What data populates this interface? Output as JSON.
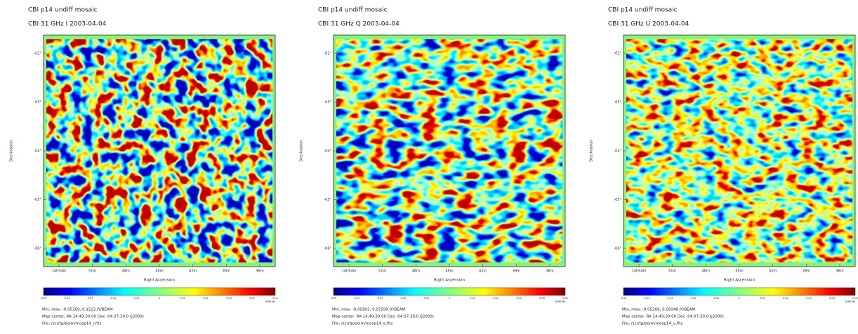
{
  "panels": [
    {
      "title": "CBI p14 undiff mosaic",
      "subtitle": "CBI 31 GHz I 2003-04-04",
      "ylabel": "Declination",
      "xlabel": "Right Ascension",
      "yticks": [
        "-02°",
        "-03°",
        "-04°",
        "-05°",
        "-06°"
      ],
      "xticks": [
        "14h54m",
        "51m",
        "48m",
        "45m",
        "42m",
        "39m",
        "36m"
      ],
      "colorbar_ticks": [
        "-0.05",
        "-0.04",
        "-0.03",
        "-0.02",
        "-0.01",
        "0",
        "0.01",
        "0.02",
        "0.03",
        "0.04",
        "0.05"
      ],
      "colorbar_unit": "JY/BEAM",
      "footer": [
        "Min, max: -0.05269, 0.1513 JY/BEAM",
        "Map center: RA 14:49:30.00 Dec -04:07:30.0 (J2000)",
        "File: /scr/tp/polm/mosp14_i.fits"
      ]
    },
    {
      "title": "CBI p14 undiff mosaic",
      "subtitle": "CBI 31 GHz Q 2003-04-04",
      "ylabel": "Declination",
      "xlabel": "Right Ascension",
      "yticks": [
        "-02°",
        "-03°",
        "-04°",
        "-05°",
        "-06°"
      ],
      "xticks": [
        "14h54m",
        "51m",
        "48m",
        "45m",
        "42m",
        "39m",
        "36m"
      ],
      "colorbar_ticks": [
        "-0.05",
        "-0.04",
        "-0.03",
        "-0.02",
        "-0.01",
        "0",
        "0.01",
        "0.02",
        "0.03",
        "0.04",
        "0.05"
      ],
      "colorbar_unit": "JY/BEAM",
      "footer": [
        "Min, max: -0.05802, 0.07599 JY/BEAM",
        "Map center: RA 14:49:30.00 Dec -04:07:30.0 (J2000)",
        "File: /scr/tp/polm/mosp14_q.fits"
      ]
    },
    {
      "title": "CBI p14 undiff mosaic",
      "subtitle": "CBI 31 GHz U 2003-04-04",
      "ylabel": "Declination",
      "xlabel": "Right Ascension",
      "yticks": [
        "-02°",
        "-03°",
        "-04°",
        "-05°",
        "-06°"
      ],
      "xticks": [
        "14h54m",
        "51m",
        "48m",
        "45m",
        "42m",
        "39m",
        "36m"
      ],
      "colorbar_ticks": [
        "-0.05",
        "-0.04",
        "-0.03",
        "-0.02",
        "-0.01",
        "0",
        "0.01",
        "0.02",
        "0.03",
        "0.04",
        "0.05"
      ],
      "colorbar_unit": "JY/BEAM",
      "footer": [
        "Min, max: -0.05206, 0.05048 JY/BEAM",
        "Map center: RA 14:49:30.00 Dec -04:07:30.0 (J2000)",
        "File: /scr/tp/polm/mosp14_u.fits"
      ]
    }
  ]
}
